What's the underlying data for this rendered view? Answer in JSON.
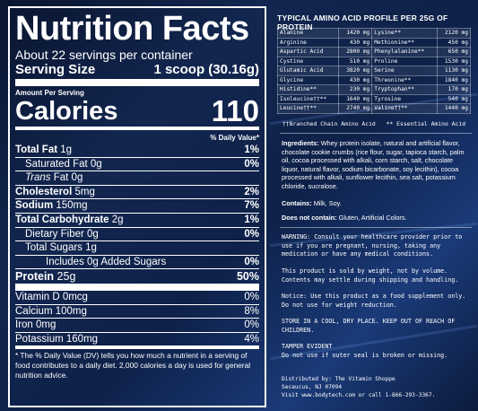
{
  "nutrition": {
    "title": "Nutrition Facts",
    "servings_per_container": "About 22 servings per container",
    "serving_size_label": "Serving Size",
    "serving_size_value": "1 scoop (30.16g)",
    "amount_per_serving": "Amount Per Serving",
    "calories_label": "Calories",
    "calories_value": "110",
    "dv_header": "% Daily Value*",
    "rows": [
      {
        "label": "Total Fat",
        "amount": "1g",
        "dv": "1%"
      },
      {
        "label": "Saturated Fat",
        "amount": "0g",
        "dv": "0%"
      },
      {
        "label": "Trans",
        "amount": "Fat 0g",
        "dv": ""
      },
      {
        "label": "Cholesterol",
        "amount": "5mg",
        "dv": "2%"
      },
      {
        "label": "Sodium",
        "amount": "150mg",
        "dv": "7%"
      },
      {
        "label": "Total Carbohydrate",
        "amount": "2g",
        "dv": "1%"
      },
      {
        "label": "Dietary Fiber",
        "amount": "0g",
        "dv": "0%"
      },
      {
        "label": "Total Sugars",
        "amount": "1g",
        "dv": ""
      },
      {
        "label": "Includes 0g Added Sugars",
        "amount": "",
        "dv": "0%"
      },
      {
        "label": "Protein",
        "amount": "25g",
        "dv": "50%"
      }
    ],
    "vitamins": [
      {
        "label": "Vitamin D 0mcg",
        "dv": "0%"
      },
      {
        "label": "Calcium 100mg",
        "dv": "8%"
      },
      {
        "label": "Iron 0mg",
        "dv": "0%"
      },
      {
        "label": "Potassium 160mg",
        "dv": "4%"
      }
    ],
    "footnote": "* The % Daily Value (DV) tells you how much a nutrient in a serving of food contributes to a daily diet. 2,000 calories a day is used for general nutrition advice."
  },
  "amino": {
    "title": "TYPICAL AMINO ACID PROFILE PER 25G OF PROTEIN",
    "rows": [
      [
        "Alanine",
        "1420 mg",
        "Lysine**",
        "2120 mg"
      ],
      [
        "Arginine",
        "430 mg",
        "Methionine**",
        "450 mg"
      ],
      [
        "Aspartic Acid",
        "2800 mg",
        "Phenylalanine**",
        "650 mg"
      ],
      [
        "Cystine",
        "510 mg",
        "Proline",
        "1530 mg"
      ],
      [
        "Glutamic Acid",
        "3820 mg",
        "Serine",
        "1130 mg"
      ],
      [
        "Glycine",
        "430 mg",
        "Threonine**",
        "1840 mg"
      ],
      [
        "Histidine**",
        "230 mg",
        "Tryptophan**",
        "170 mg"
      ],
      [
        "Isoleucine††**",
        "1640 mg",
        "Tyrosine",
        "540 mg"
      ],
      [
        "Leucine††**",
        "2740 mg",
        "Valine††**",
        "1440 mg"
      ]
    ],
    "note_bcaa": "††Branched Chain Amino Acid",
    "note_eaa": "** Essential Amino Acid"
  },
  "right": {
    "ingredients_label": "Ingredients:",
    "ingredients_text": "Whey protein isolate, natural and artificial flavor, chocolate cookie crumbs (rice flour, sugar, tapioca starch, palm oil, cocoa processed with alkali, corn starch, salt, chocolate liquor, natural flavor, sodium bicarbonate, soy lecithin), cocoa processed with alkali, sunflower lecithin, sea salt, potassium chloride, sucralose.",
    "contains_label": "Contains:",
    "contains_text": "Milk, Soy.",
    "not_contain_label": "Does not contain:",
    "not_contain_text": "Gluten, Artificial Colors.",
    "warning": "WARNING: Consult your healthcare provider prior to use if you are pregnant, nursing, taking any medication or have any medical conditions.",
    "sold_by_weight": "This product is sold by weight, not by volume. Contents may settle during shipping and handling.",
    "notice": "Notice: Use this product as a food supplement only. Do not use for weight reduction.",
    "store": "STORE IN A COOL, DRY PLACE. KEEP OUT OF REACH OF CHILDREN.",
    "tamper_title": "TAMPER EVIDENT",
    "tamper_text": "Do not use if outer seal is broken or missing.",
    "distributed_1": "Distributed by: The Vitamin Shoppe",
    "distributed_2": "Secaucus, NJ 07094",
    "distributed_3": "Visit www.bodytech.com or call 1-866-293-3367."
  }
}
